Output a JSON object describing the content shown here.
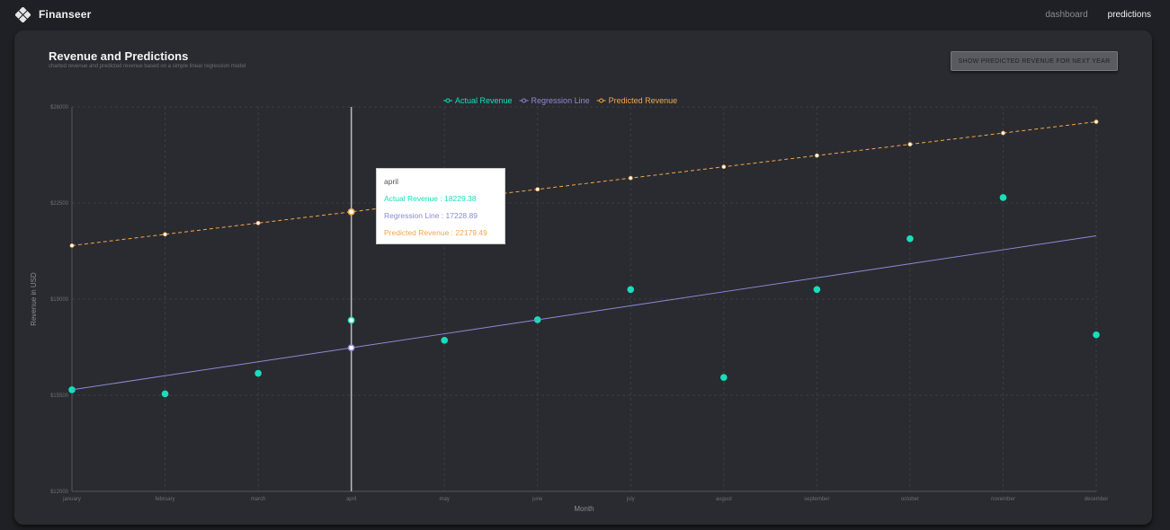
{
  "app": {
    "name": "Finanseer"
  },
  "nav": {
    "dashboard": "dashboard",
    "predictions": "predictions"
  },
  "panel": {
    "title": "Revenue and Predictions",
    "subtitle": "charted revenue and predicted revenue based on a simple linear regression model",
    "button": "SHOW PREDICTED REVENUE FOR NEXT YEAR"
  },
  "tooltip": {
    "label": "april",
    "actual": "Actual Revenue : 18229.38",
    "regression": "Regression Line : 17228.89",
    "predicted": "Predicted Revenue : 22179.49"
  },
  "colors": {
    "actual": "#14e0bd",
    "regression": "#8c89d6",
    "predicted": "#f2a64c",
    "grid": "#3c3d42"
  },
  "icons": {
    "logo": "diamond-cluster-logo"
  },
  "chart_data": {
    "type": "line",
    "categories": [
      "january",
      "february",
      "march",
      "april",
      "may",
      "june",
      "july",
      "august",
      "september",
      "october",
      "november",
      "december"
    ],
    "xlabel": "Month",
    "ylabel": "Revenue in USD",
    "ylim": [
      12000,
      26000
    ],
    "yticks": [
      "$12000",
      "$15500",
      "$19000",
      "$22500",
      "$26000"
    ],
    "grid": true,
    "legend_position": "top-center",
    "active_index": 3,
    "series": [
      {
        "name": "Actual Revenue",
        "style": "markers",
        "values": [
          15700,
          15550,
          16300,
          18229.38,
          17500,
          18250,
          19350,
          16150,
          19350,
          21200,
          22700,
          17700
        ]
      },
      {
        "name": "Regression Line",
        "style": "line",
        "values": [
          15700,
          16209.73,
          16719.46,
          17228.89,
          17738.62,
          18248.35,
          18758.08,
          19267.81,
          19777.54,
          20287.27,
          20797.0,
          21306.73
        ]
      },
      {
        "name": "Predicted Revenue",
        "style": "dashed",
        "values": [
          20950,
          21359.83,
          21769.66,
          22179.49,
          22589.32,
          22999.15,
          23408.98,
          23818.81,
          24228.64,
          24638.47,
          25048.3,
          25458.13
        ]
      }
    ]
  }
}
